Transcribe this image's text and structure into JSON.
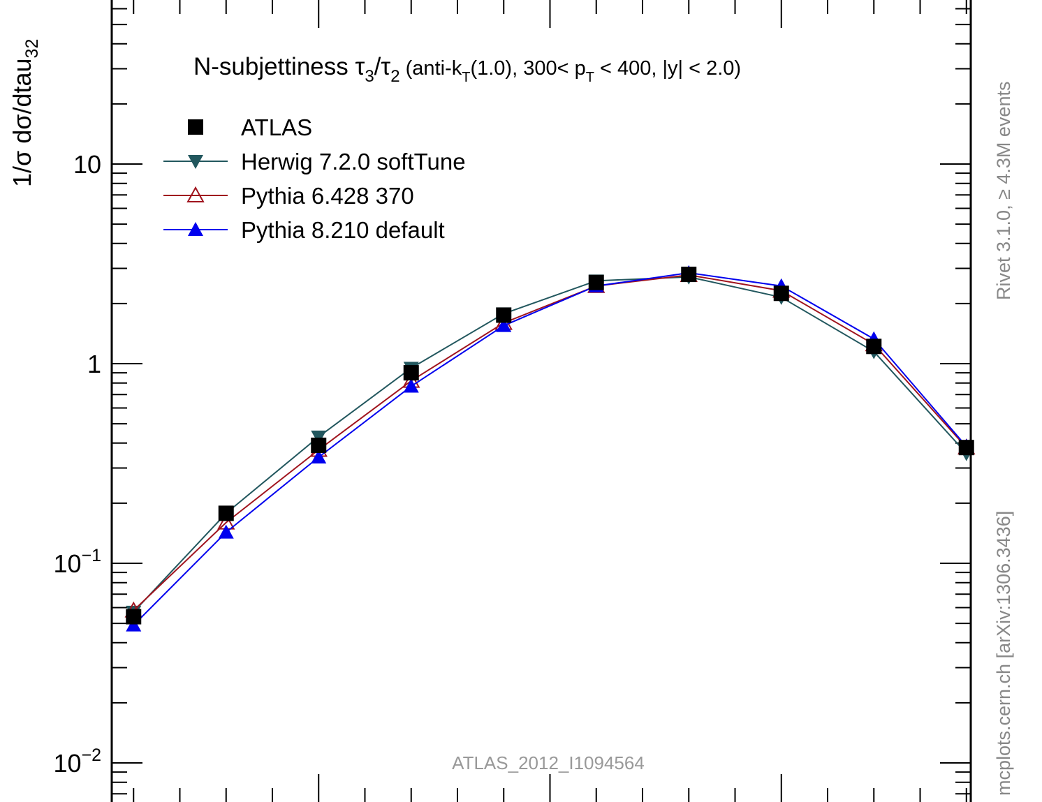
{
  "chart_data": {
    "type": "line",
    "title": {
      "main": "N-subjettiness ",
      "tau_a": "τ",
      "tau_a_sub": "3",
      "slash": "/",
      "tau_b": "τ",
      "tau_b_sub": "2",
      "rest1": " (anti-k",
      "k_sub": "T",
      "rest2": "(1.0), 300< p",
      "p_sub": "T",
      "rest3": " < 400, |y| < 2.0)"
    },
    "ylabel": {
      "main": "1/σ dσ/dtau",
      "sub": "32"
    },
    "yscale": "log",
    "ylim": [
      0.007,
      60
    ],
    "xlim": [
      0.0,
      1.0
    ],
    "y_tick_labels": [
      {
        "value": 10,
        "base": "10",
        "exp": ""
      },
      {
        "value": 1,
        "base": "1",
        "exp": ""
      },
      {
        "value": 0.1,
        "base": "10",
        "exp": "−1"
      },
      {
        "value": 0.01,
        "base": "10",
        "exp": "−2"
      }
    ],
    "legend_position": "top-left",
    "watermark": "ATLAS_2012_I1094564",
    "side_note_top": "Rivet 3.1.0, ≥ 4.3M events",
    "side_note_bottom": "mcplots.cern.ch [arXiv:1306.3436]",
    "x": [
      0.05,
      0.15,
      0.25,
      0.35,
      0.45,
      0.55,
      0.65,
      0.75,
      0.85,
      0.95
    ],
    "series": [
      {
        "name": "ATLAS",
        "marker": "square",
        "color": "#000000",
        "line": false,
        "values": [
          0.054,
          0.178,
          0.39,
          0.9,
          1.75,
          2.55,
          2.8,
          2.25,
          1.22,
          0.38
        ]
      },
      {
        "name": "Herwig 7.2.0 softTune",
        "marker": "triangle-down",
        "color": "#22575e",
        "line": true,
        "values": [
          0.057,
          0.178,
          0.43,
          0.95,
          1.78,
          2.6,
          2.72,
          2.15,
          1.15,
          0.355
        ]
      },
      {
        "name": "Pythia 6.428 370",
        "marker": "triangle-up-open",
        "color": "#a0141e",
        "line": true,
        "values": [
          0.058,
          0.16,
          0.37,
          0.82,
          1.6,
          2.45,
          2.78,
          2.32,
          1.25,
          0.38
        ]
      },
      {
        "name": "Pythia 8.210 default",
        "marker": "triangle-up",
        "color": "#0000ee",
        "line": true,
        "values": [
          0.049,
          0.143,
          0.34,
          0.77,
          1.55,
          2.45,
          2.85,
          2.45,
          1.33,
          0.385
        ]
      }
    ]
  }
}
